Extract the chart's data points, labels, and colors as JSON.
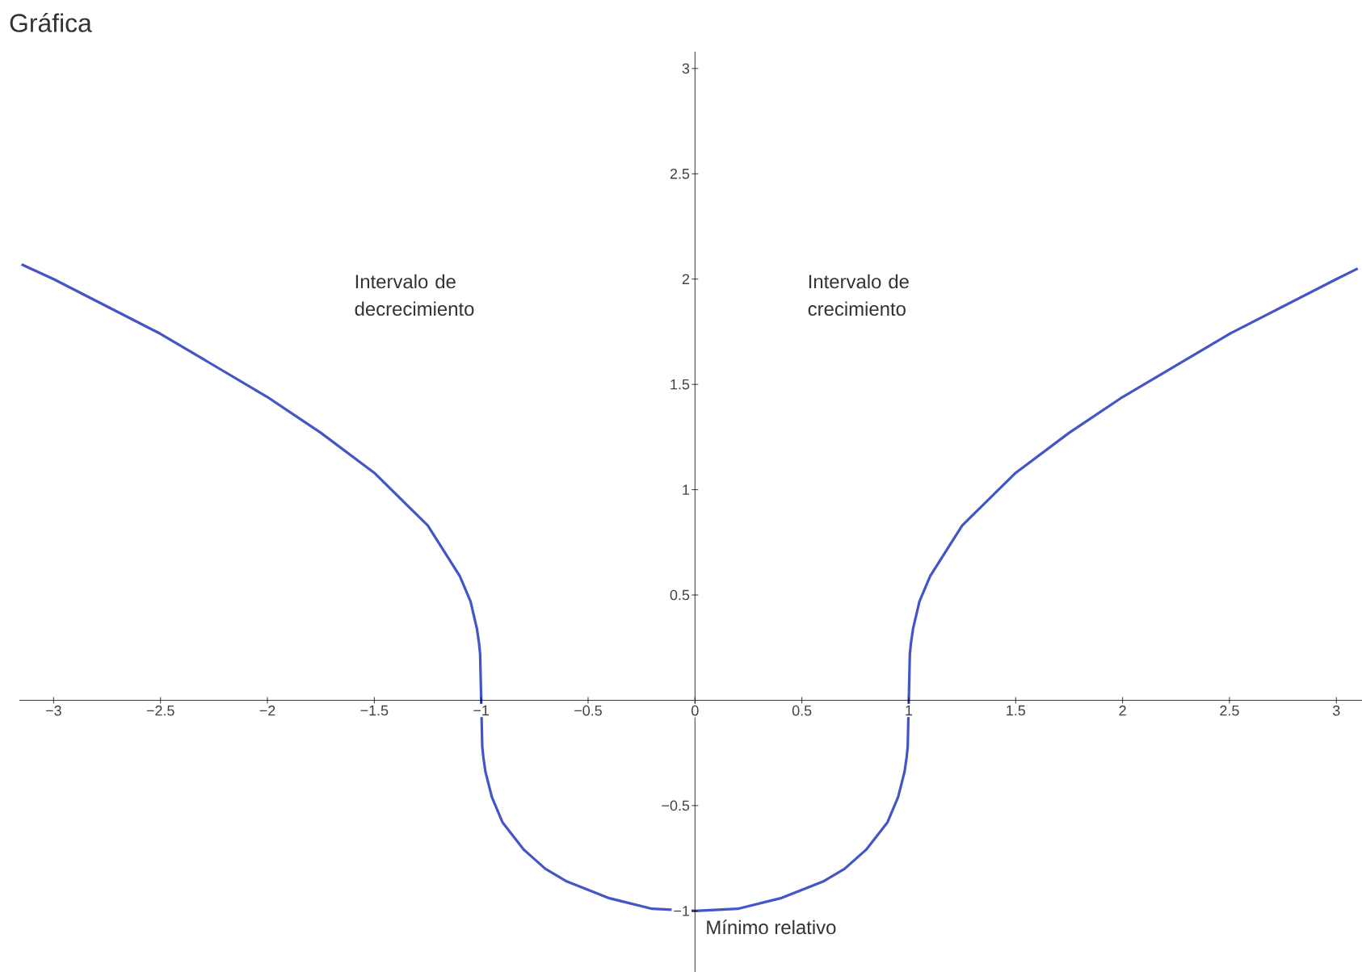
{
  "chart_data": {
    "type": "line",
    "title": "Gráfica",
    "x": [
      -3.15,
      -3,
      -2.75,
      -2.5,
      -2,
      -1.75,
      -1.5,
      -1.25,
      -1.1,
      -1.05,
      -1.02,
      -1.01,
      -1.005,
      -1,
      -0.995,
      -0.99,
      -0.98,
      -0.95,
      -0.9,
      -0.8,
      -0.7,
      -0.6,
      -0.4,
      -0.2,
      0,
      0.2,
      0.4,
      0.6,
      0.7,
      0.8,
      0.9,
      0.95,
      0.98,
      0.99,
      0.995,
      1,
      1.005,
      1.01,
      1.02,
      1.05,
      1.1,
      1.25,
      1.5,
      1.75,
      2,
      2.5,
      2.75,
      3,
      3.1
    ],
    "series": [
      {
        "color": "#4455c8",
        "values": [
          2.07,
          2,
          1.87,
          1.74,
          1.44,
          1.27,
          1.08,
          0.83,
          0.59,
          0.47,
          0.34,
          0.27,
          0.22,
          0,
          -0.22,
          -0.27,
          -0.34,
          -0.46,
          -0.58,
          -0.71,
          -0.8,
          -0.86,
          -0.94,
          -0.99,
          -1,
          -0.99,
          -0.94,
          -0.86,
          -0.8,
          -0.71,
          -0.58,
          -0.46,
          -0.34,
          -0.27,
          -0.22,
          0,
          0.22,
          0.27,
          0.34,
          0.47,
          0.59,
          0.83,
          1.08,
          1.27,
          1.44,
          1.74,
          1.87,
          2,
          2.05
        ]
      }
    ],
    "xlim": [
      -3.16,
      3.12
    ],
    "ylim": [
      -1.29,
      3.08
    ],
    "xticks": [
      {
        "value": -3,
        "label": "−3"
      },
      {
        "value": -2.5,
        "label": "−2.5"
      },
      {
        "value": -2,
        "label": "−2"
      },
      {
        "value": -1.5,
        "label": "−1.5"
      },
      {
        "value": -1,
        "label": "−1"
      },
      {
        "value": -0.5,
        "label": "−0.5"
      },
      0,
      0.5,
      1,
      1.5,
      2,
      2.5,
      3
    ],
    "yticks": [
      {
        "value": -1,
        "label": "−1"
      },
      {
        "value": -0.5,
        "label": "−0.5"
      },
      0.5,
      1,
      1.5,
      2,
      2.5,
      3
    ],
    "annotations": [
      "Intervalo de decrecimiento",
      "Intervalo de crecimiento",
      {
        "text": "Mínimo relativo",
        "x": 0,
        "y": -1
      }
    ]
  }
}
